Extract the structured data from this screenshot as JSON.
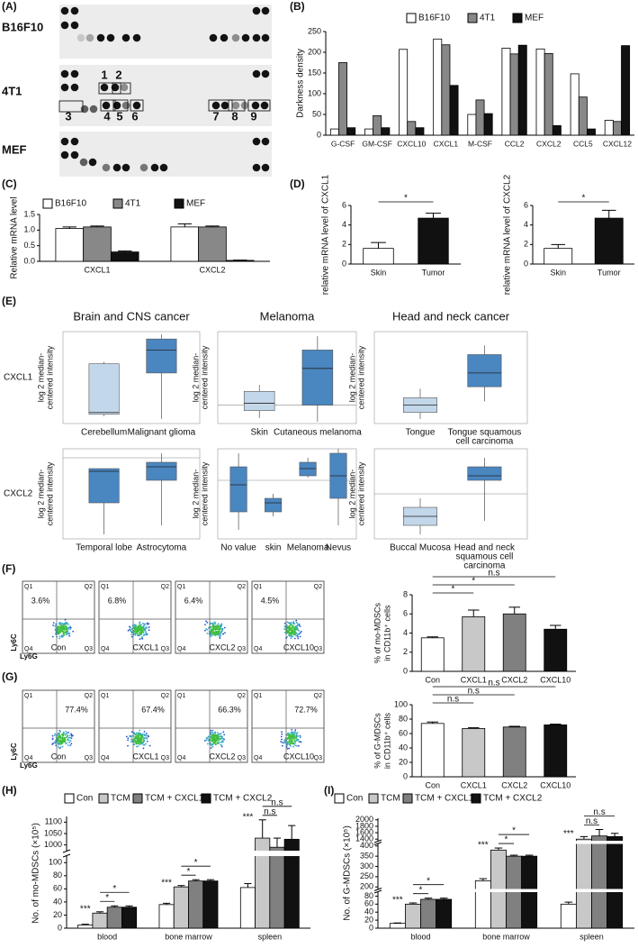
{
  "panel_labels": [
    "(A)",
    "(B)",
    "(C)",
    "(D)",
    "(E)",
    "(F)",
    "(G)",
    "(H)",
    "(I)"
  ],
  "blot": {
    "cell_lines": [
      "B16F10",
      "4T1",
      "MEF"
    ],
    "spot_numbers": [
      "1",
      "2",
      "3",
      "4",
      "5",
      "6",
      "7",
      "8",
      "9"
    ]
  },
  "chart_data": [
    {
      "type": "bar",
      "y_label": "Darkness density",
      "categories": [
        "G-CSF",
        "GM-CSF",
        "CXCL10",
        "CXCL1",
        "M-CSF",
        "CCL2",
        "CXCL2",
        "CCL5",
        "CXCL12"
      ],
      "series": [
        {
          "name": "B16F10",
          "color": "#ffffff",
          "values": [
            15,
            15,
            207,
            232,
            50,
            210,
            208,
            148,
            36
          ]
        },
        {
          "name": "4T1",
          "color": "#888888",
          "values": [
            175,
            47,
            33,
            218,
            85,
            196,
            197,
            92,
            33
          ]
        },
        {
          "name": "MEF",
          "color": "#111111",
          "values": [
            18,
            18,
            18,
            120,
            52,
            217,
            23,
            15,
            216
          ]
        }
      ],
      "ylim": [
        0,
        250
      ],
      "yticks": [
        0,
        50,
        100,
        150,
        200,
        250
      ],
      "legend": "top"
    },
    {
      "type": "bar",
      "y_label": "Relative mRNA level",
      "categories": [
        "CXCL1",
        "CXCL2"
      ],
      "series": [
        {
          "name": "B16F10",
          "color": "#ffffff",
          "values": [
            1.05,
            1.1
          ],
          "errors": [
            0.05,
            0.1
          ]
        },
        {
          "name": "4T1",
          "color": "#888888",
          "values": [
            1.1,
            1.1
          ],
          "errors": [
            0.03,
            0.03
          ]
        },
        {
          "name": "MEF",
          "color": "#111111",
          "values": [
            0.3,
            0.03
          ],
          "errors": [
            0.03,
            0.01
          ]
        }
      ],
      "ylim": [
        0,
        1.5
      ],
      "yticks": [
        {
          "value": 0,
          "label": "0.0"
        },
        {
          "value": 0.5,
          "label": "0.5"
        },
        {
          "value": 1,
          "label": "1.0"
        },
        {
          "value": 1.5,
          "label": "1.5"
        }
      ],
      "legend": "top"
    },
    {
      "type": "bar",
      "y_label": "relative mRNA level of CXCL1",
      "categories": [
        "Skin",
        "Tumor"
      ],
      "values": [
        1.6,
        4.7
      ],
      "errors": [
        0.6,
        0.5
      ],
      "colors": [
        "#ffffff",
        "#111111"
      ],
      "ylim": [
        0,
        6
      ],
      "yticks": [
        0,
        2,
        4,
        6
      ],
      "annotations": [
        "*"
      ]
    },
    {
      "type": "bar",
      "y_label": "relative mRNA level of CXCL2",
      "categories": [
        "Skin",
        "Tumor"
      ],
      "values": [
        1.6,
        4.7
      ],
      "errors": [
        0.4,
        0.8
      ],
      "colors": [
        "#ffffff",
        "#111111"
      ],
      "ylim": [
        0,
        6
      ],
      "yticks": [
        0,
        2,
        4,
        6
      ],
      "annotations": [
        "*"
      ]
    },
    {
      "type": "bar",
      "y_label": [
        "% of mo-MDSCs",
        "in CD11b⁺ cells"
      ],
      "categories": [
        "Con",
        "CXCL1",
        "CXCL2",
        "CXCL10"
      ],
      "values": [
        3.5,
        5.7,
        6.0,
        4.4
      ],
      "errors": [
        0.1,
        0.7,
        0.7,
        0.4
      ],
      "colors": [
        "#ffffff",
        "#c8c8c8",
        "#808080",
        "#111111"
      ],
      "ylim": [
        0,
        8
      ],
      "yticks": [
        0,
        2,
        4,
        6,
        8
      ],
      "annotations": [
        "*",
        "*",
        "n.s"
      ]
    },
    {
      "type": "bar",
      "y_label": [
        "% of G-MDSCs",
        "in CD11b⁺ cells"
      ],
      "categories": [
        "Con",
        "CXCL1",
        "CXCL2",
        "CXCL10"
      ],
      "values": [
        74,
        67,
        69,
        72
      ],
      "errors": [
        2,
        1,
        1,
        1
      ],
      "colors": [
        "#ffffff",
        "#c8c8c8",
        "#808080",
        "#111111"
      ],
      "ylim": [
        0,
        100
      ],
      "yticks": [
        0,
        20,
        40,
        60,
        80,
        100
      ],
      "annotations": [
        "n.s",
        "n.s",
        "n.s"
      ]
    },
    {
      "type": "bar",
      "y_label": "No. of mo-MDSCs (×10⁵)",
      "categories": [
        "blood",
        "bone marrow",
        "spleen"
      ],
      "series": [
        {
          "name": "Con",
          "color": "#ffffff",
          "values": [
            5,
            36,
            62
          ],
          "errors": [
            1,
            2,
            6
          ]
        },
        {
          "name": "TCM",
          "color": "#c8c8c8",
          "values": [
            23,
            63,
            1030
          ],
          "errors": [
            2,
            2,
            80
          ]
        },
        {
          "name": "TCM + CXCL1",
          "color": "#808080",
          "values": [
            32,
            72,
            990
          ],
          "errors": [
            2,
            2,
            40
          ]
        },
        {
          "name": "TCM + CXCL2",
          "color": "#111111",
          "values": [
            32,
            72,
            1025
          ],
          "errors": [
            2,
            2,
            60
          ]
        }
      ],
      "axis_segments": [
        {
          "ylim": [
            0,
            110
          ],
          "yticks": [
            0,
            20,
            40,
            60,
            80,
            100
          ]
        },
        {
          "ylim": [
            975,
            1125
          ],
          "yticks": [
            1000,
            1050,
            1100
          ]
        }
      ],
      "annotations": [
        "***",
        "*",
        "*",
        "***",
        "*",
        "*",
        "***",
        "n.s",
        "n.s"
      ],
      "legend": "top"
    },
    {
      "type": "bar",
      "y_label": "No. of G-MDSCs (×10⁵)",
      "categories": [
        "blood",
        "bone marrow",
        "spleen"
      ],
      "series": [
        {
          "name": "Con",
          "color": "#ffffff",
          "values": [
            12,
            230,
            60
          ],
          "errors": [
            1,
            10,
            5
          ]
        },
        {
          "name": "TCM",
          "color": "#c8c8c8",
          "values": [
            60,
            380,
            1400
          ],
          "errors": [
            3,
            10,
            80
          ]
        },
        {
          "name": "TCM + CXCL1",
          "color": "#808080",
          "values": [
            72,
            350,
            1500
          ],
          "errors": [
            3,
            5,
            200
          ]
        },
        {
          "name": "TCM + CXCL2",
          "color": "#111111",
          "values": [
            72,
            350,
            1480
          ],
          "errors": [
            3,
            5,
            100
          ]
        }
      ],
      "axis_segments": [
        {
          "ylim": [
            0,
            90
          ],
          "yticks": [
            0,
            20,
            40,
            60,
            80
          ]
        },
        {
          "ylim": [
            190,
            410
          ],
          "yticks": [
            200,
            250,
            300,
            350,
            400
          ]
        },
        {
          "ylim": [
            1350,
            2050
          ],
          "yticks": [
            1400,
            1600,
            1800,
            2000
          ]
        }
      ],
      "annotations": [
        "***",
        "*",
        "*",
        "***",
        "*",
        "*",
        "***",
        "n.s",
        "n.s"
      ],
      "legend": "top"
    }
  ],
  "expression": {
    "titles": [
      "Brain and CNS cancer",
      "Melanoma",
      "Head and neck cancer"
    ],
    "genes": [
      "CXCL1",
      "CXCL2"
    ],
    "y_label": [
      "log 2 median-",
      "centered intensity"
    ],
    "panels": [
      {
        "categories": [
          "Cerebellum",
          "Malignant glioma"
        ]
      },
      {
        "categories": [
          "Skin",
          "Cutaneous melanoma"
        ]
      },
      {
        "categories": [
          "Tongue",
          [
            "Tongue squamous",
            "cell carcinoma"
          ]
        ]
      },
      {
        "categories": [
          "Temporal lobe",
          "Astrocytoma"
        ]
      },
      {
        "categories": [
          "No value",
          "skin",
          "Melanoma",
          "Nevus"
        ]
      },
      {
        "categories": [
          "Buccal Mucosa",
          [
            "Head and neck",
            "squamous cell",
            "carcinoma"
          ]
        ]
      }
    ]
  },
  "flow": {
    "quadrants": [
      "Q1",
      "Q2",
      "Q3",
      "Q4"
    ],
    "y_axis": "Ly6C",
    "x_axis": "Ly6G",
    "conditions": [
      "Con",
      "CXCL1",
      "CXCL2",
      "CXCL10"
    ],
    "panels": [
      {
        "percents": [
          "3.6%",
          "6.8%",
          "6.4%",
          "4.5%"
        ]
      },
      {
        "percents": [
          "77.4%",
          "67.4%",
          "66.3%",
          "72.7%"
        ]
      }
    ]
  }
}
